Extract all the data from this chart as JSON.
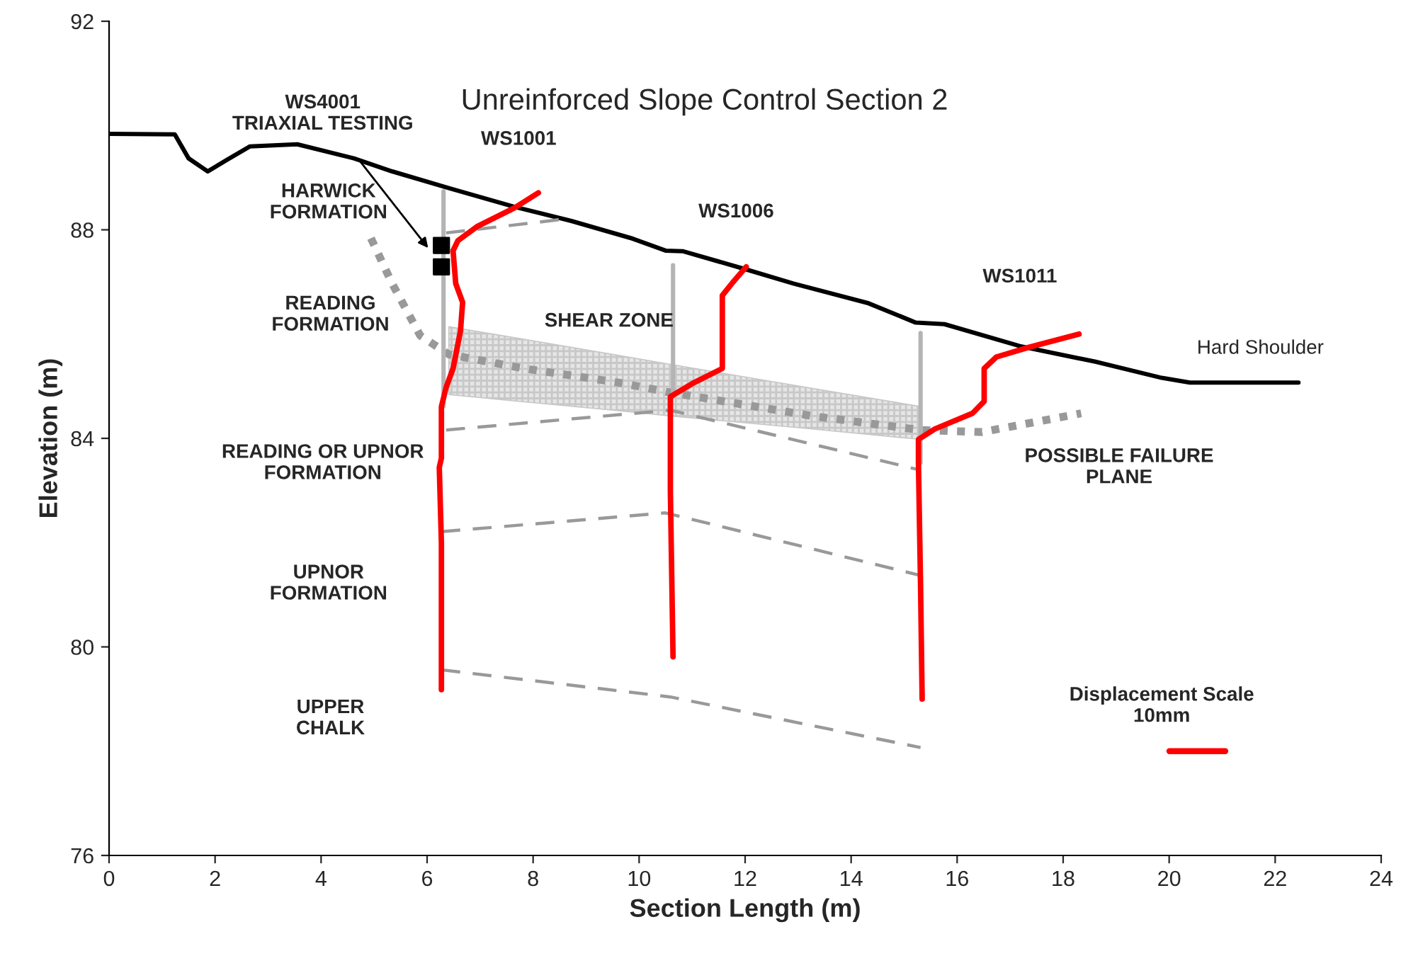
{
  "chart_data": {
    "type": "line",
    "title": "Unreinforced Slope Control Section 2",
    "xlabel": "Section Length (m)",
    "ylabel": "Elevation (m)",
    "xlim": [
      0,
      24
    ],
    "ylim": [
      76,
      92
    ],
    "xticks": [
      0,
      2,
      4,
      6,
      8,
      10,
      12,
      14,
      16,
      18,
      20,
      22,
      24
    ],
    "yticks": [
      76,
      80,
      84,
      88,
      92
    ],
    "grid": false,
    "series": [
      {
        "color": "#000000",
        "line_style": "solid",
        "x": [
          0.0,
          1.24,
          1.5,
          1.86,
          2.22,
          2.66,
          3.55,
          4.62,
          5.34,
          6.41,
          7.65,
          8.72,
          9.88,
          10.5,
          10.82,
          12.02,
          12.91,
          14.33,
          15.22,
          15.76,
          17.18,
          18.61,
          19.86,
          20.39,
          22.44
        ],
        "values": [
          89.84,
          89.83,
          89.37,
          89.12,
          89.34,
          89.6,
          89.64,
          89.37,
          89.12,
          88.8,
          88.44,
          88.17,
          87.83,
          87.6,
          87.59,
          87.24,
          86.97,
          86.59,
          86.22,
          86.19,
          85.77,
          85.47,
          85.16,
          85.07,
          85.07
        ]
      },
      {
        "color": "#999999",
        "line_style": "dashed",
        "x": [
          6.36,
          8.63
        ],
        "values": [
          87.94,
          88.21
        ]
      },
      {
        "color": "#999999",
        "line_style": "dashed",
        "x": [
          6.36,
          10.59,
          15.31
        ],
        "values": [
          84.16,
          84.54,
          83.39
        ]
      },
      {
        "color": "#999999",
        "line_style": "dashed",
        "x": [
          6.27,
          10.5,
          15.31
        ],
        "values": [
          82.21,
          82.57,
          81.37
        ]
      },
      {
        "color": "#999999",
        "line_style": "dashed",
        "x": [
          6.27,
          10.59,
          15.31
        ],
        "values": [
          79.56,
          79.04,
          78.07
        ]
      },
      {
        "color": "#999999",
        "line_style": "dotted",
        "x": [
          4.94,
          5.34,
          5.87,
          6.41,
          7.83,
          9.61,
          10.59,
          13.26,
          15.31,
          16.47,
          18.34
        ],
        "values": [
          87.84,
          86.97,
          85.97,
          85.61,
          85.34,
          85.07,
          84.88,
          84.43,
          84.16,
          84.12,
          84.48
        ],
        "lower": [
          null,
          null,
          null,
          84.84,
          84.7,
          84.53,
          84.43,
          84.18,
          83.98,
          null,
          null
        ],
        "upper": [
          null,
          null,
          null,
          86.14,
          85.9,
          85.59,
          85.42,
          84.96,
          84.61,
          null,
          null
        ]
      },
      {
        "color": "#b4b4b4",
        "line_style": "solid",
        "x": [
          6.31,
          6.31
        ],
        "values": [
          88.74,
          84.61
        ]
      },
      {
        "color": "#b4b4b4",
        "line_style": "solid",
        "x": [
          10.64,
          10.64
        ],
        "values": [
          87.32,
          84.8
        ]
      },
      {
        "color": "#b4b4b4",
        "line_style": "solid",
        "x": [
          15.31,
          15.31
        ],
        "values": [
          86.02,
          83.53
        ]
      },
      {
        "type": "scatter",
        "color": "#000000",
        "marker": "square",
        "x": [
          6.27,
          6.27
        ],
        "values": [
          87.7,
          87.29
        ]
      },
      {
        "color": "#ff0000",
        "line_style": "solid",
        "x": [
          8.1,
          7.65,
          6.94,
          6.58,
          6.49,
          6.54,
          6.67,
          6.63,
          6.49,
          6.36,
          6.27,
          6.27,
          6.23,
          6.27,
          6.27
        ],
        "values": [
          88.71,
          88.42,
          88.06,
          87.79,
          87.6,
          86.97,
          86.61,
          86.06,
          85.34,
          84.98,
          84.61,
          83.62,
          83.44,
          81.99,
          79.18
        ]
      },
      {
        "color": "#ff0000",
        "line_style": "solid",
        "x": [
          12.02,
          11.75,
          11.57,
          11.57,
          11.57,
          11.04,
          10.59,
          10.59,
          10.59,
          10.64
        ],
        "values": [
          87.29,
          86.97,
          86.74,
          86.43,
          85.34,
          85.07,
          84.8,
          84.43,
          82.98,
          79.81
        ]
      },
      {
        "color": "#ff0000",
        "line_style": "solid",
        "x": [
          18.3,
          17.36,
          16.74,
          16.51,
          16.51,
          16.29,
          15.58,
          15.27,
          15.27,
          15.31,
          15.34
        ],
        "values": [
          86.0,
          85.75,
          85.56,
          85.34,
          84.71,
          84.48,
          84.18,
          83.98,
          83.53,
          81.17,
          79.0
        ]
      }
    ],
    "annotations": [
      "WS4001\nTRIAXIAL TESTING",
      "WS1001",
      "HARWICK\nFORMATION",
      "WS1006",
      "WS1011",
      "READING\nFORMATION",
      "SHEAR ZONE",
      "Hard Shoulder",
      "READING OR UPNOR\nFORMATION",
      "POSSIBLE FAILURE\nPLANE",
      "UPNOR\nFORMATION",
      "UPPER\nCHALK",
      "Displacement Scale\n10mm"
    ]
  }
}
